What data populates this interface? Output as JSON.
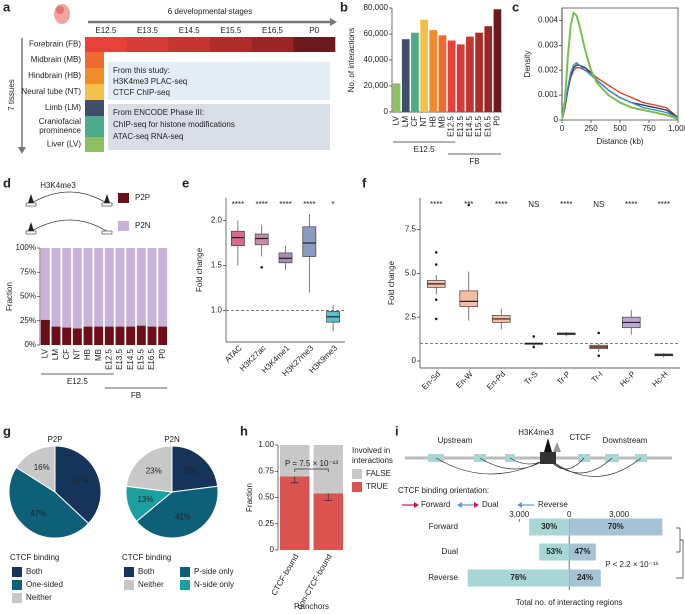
{
  "panel_labels": [
    "a",
    "b",
    "c",
    "d",
    "e",
    "f",
    "g",
    "h",
    "i"
  ],
  "panel_a": {
    "stages_title": "6 developmental stages",
    "stages": [
      "E12.5",
      "E13.5",
      "E14.5",
      "E15.5",
      "E16.5",
      "P0"
    ],
    "fb_stage_colors": [
      "#e8413a",
      "#d73b37",
      "#c23530",
      "#ad2d2b",
      "#982626",
      "#6d1a1f"
    ],
    "tissues_title": "7 tissues",
    "tissues": [
      {
        "lines": [
          "Forebrain (FB)"
        ],
        "color": "#e8413a"
      },
      {
        "lines": [
          "Midbrain (MB)"
        ],
        "color": "#ed6b2e"
      },
      {
        "lines": [
          "Hindbrain (HB)"
        ],
        "color": "#f08c2c"
      },
      {
        "lines": [
          "Neural tube (NT)"
        ],
        "color": "#f5c04a"
      },
      {
        "lines": [
          "Limb (LM)"
        ],
        "color": "#3f4f6b"
      },
      {
        "lines": [
          "Craniofacial",
          "prominence"
        ],
        "color": "#4cab8a"
      },
      {
        "lines": [
          "Liver (LV)"
        ],
        "color": "#8cc063"
      }
    ],
    "study_box": [
      "From this study:",
      "H3K4me3 PLAC-seq",
      "CTCF ChIP-seq"
    ],
    "encode_box": [
      "From ENCODE Phase III:",
      "ChIP-seq for histone modifications",
      "ATAC-seq RNA-seq"
    ]
  },
  "panel_i": {
    "upstream": "Upstream",
    "downstream": "Downstream",
    "mark_label": "H3K4me3",
    "ctcf_label": "CTCF",
    "legend_title": "CTCF binding orientation:",
    "orientations": [
      "Forward",
      "Dual",
      "Reverse"
    ]
  },
  "chart_data": [
    {
      "type": "bar",
      "y_label": "No. of interactions",
      "categories": [
        "LV",
        "LM",
        "CF",
        "NT",
        "HB",
        "MB",
        "E12.5",
        "E13.5",
        "E14.5",
        "E15.5",
        "E16.5",
        "P0"
      ],
      "values": [
        22000,
        56000,
        61000,
        71000,
        63000,
        59000,
        55000,
        52000,
        58000,
        61000,
        66000,
        79000
      ],
      "colors": [
        "#8cc063",
        "#3f4f6b",
        "#4cab8a",
        "#f5c04a",
        "#f08c2c",
        "#ed6b2e",
        "#e8413a",
        "#d73b37",
        "#c23530",
        "#ad2d2b",
        "#982626",
        "#6d1a1f"
      ],
      "ylim": [
        0,
        80000
      ],
      "yticks": [
        0,
        {
          "value": 20000,
          "label": "20,000"
        },
        {
          "value": 40000,
          "label": "40,000"
        },
        {
          "value": 60000,
          "label": "60,000"
        },
        {
          "value": 80000,
          "label": "80,000"
        }
      ],
      "group_labels": [
        "E12.5",
        "FB"
      ]
    },
    {
      "type": "line",
      "x_label": "Distance (kb)",
      "y_label": "Density",
      "x": [
        0,
        25,
        50,
        75,
        100,
        125,
        150,
        200,
        250,
        300,
        400,
        500,
        600,
        700,
        800,
        900,
        1000
      ],
      "series": [
        {
          "color": "#d94030",
          "values": [
            0,
            0.0005,
            0.0012,
            0.0017,
            0.002,
            0.0021,
            0.0021,
            0.002,
            0.0019,
            0.0017,
            0.0014,
            0.0011,
            0.0009,
            0.0007,
            0.0006,
            0.0005,
            0.0001
          ]
        },
        {
          "color": "#2c3e5c",
          "values": [
            0,
            0.0005,
            0.0012,
            0.0018,
            0.0021,
            0.0022,
            0.0022,
            0.0021,
            0.0019,
            0.0016,
            0.0012,
            0.0009,
            0.0007,
            0.0006,
            0.0005,
            0.0004,
            0.0001
          ]
        },
        {
          "color": "#3a8fc1",
          "values": [
            0,
            0.0006,
            0.0013,
            0.0019,
            0.0022,
            0.0023,
            0.0022,
            0.002,
            0.0018,
            0.0016,
            0.0012,
            0.0009,
            0.0007,
            0.0005,
            0.0004,
            0.0003,
            0.0001
          ]
        },
        {
          "color": "#7cbf4f",
          "values": [
            0,
            0.0008,
            0.0025,
            0.0038,
            0.0043,
            0.0042,
            0.0038,
            0.0028,
            0.002,
            0.0015,
            0.001,
            0.0007,
            0.0005,
            0.0004,
            0.0003,
            0.0002,
            5e-05
          ]
        }
      ],
      "xlim": [
        0,
        1000
      ],
      "xticks": [
        0,
        250,
        500,
        750,
        {
          "value": 1000,
          "label": "1,000"
        }
      ],
      "ylim": [
        0,
        0.0045
      ],
      "yticks": [
        0,
        0.001,
        0.002,
        0.003,
        0.004
      ]
    },
    {
      "type": "stacked_bar",
      "y_label": "Fraction",
      "top_label": "H3K4me3",
      "categories": [
        "LV",
        "LM",
        "CF",
        "NT",
        "HB",
        "MB",
        "E12.5",
        "E13.5",
        "E14.5",
        "E15.5",
        "E16.5",
        "P0"
      ],
      "series": [
        {
          "name": "P2P",
          "color": "#6b0f1a",
          "values": [
            26,
            19,
            18,
            17,
            19,
            19,
            19,
            19,
            19,
            20,
            19,
            19
          ]
        },
        {
          "name": "P2N",
          "color": "#c9b3d9",
          "values": [
            74,
            81,
            82,
            83,
            81,
            81,
            81,
            81,
            81,
            80,
            81,
            81
          ]
        }
      ],
      "ylim": [
        0,
        100
      ],
      "yticks": [
        {
          "value": 0,
          "label": "0%"
        },
        {
          "value": 25,
          "label": "25%"
        },
        {
          "value": 50,
          "label": "50%"
        },
        {
          "value": 75,
          "label": "75%"
        },
        {
          "value": 100,
          "label": "100%"
        }
      ],
      "group_labels": [
        "E12.5",
        "FB"
      ]
    },
    {
      "type": "box",
      "y_label": "Fold change",
      "categories": [
        "ATAC",
        "H3K27ac",
        "H3K4me1",
        "H3K27me3",
        "H3K9me3"
      ],
      "colors": [
        "#d96a8c",
        "#c28da6",
        "#a58cb5",
        "#8a9ac0",
        "#5bbfca"
      ],
      "annotations": [
        "****",
        "****",
        "****",
        "****",
        "*"
      ],
      "boxes": [
        {
          "whisker_low": 1.5,
          "q1": 1.72,
          "median": 1.81,
          "q3": 1.88,
          "whisker_high": 2.0,
          "outliers": []
        },
        {
          "whisker_low": 1.6,
          "q1": 1.73,
          "median": 1.8,
          "q3": 1.85,
          "whisker_high": 1.95,
          "outliers": [
            1.48
          ]
        },
        {
          "whisker_low": 1.45,
          "q1": 1.53,
          "median": 1.58,
          "q3": 1.64,
          "whisker_high": 1.72,
          "outliers": []
        },
        {
          "whisker_low": 1.2,
          "q1": 1.6,
          "median": 1.75,
          "q3": 1.93,
          "whisker_high": 2.07,
          "outliers": []
        },
        {
          "whisker_low": 0.77,
          "q1": 0.87,
          "median": 0.93,
          "q3": 0.99,
          "whisker_high": 1.06,
          "outliers": []
        }
      ],
      "ref_line": 1,
      "ylim": [
        0.65,
        2.25
      ],
      "yticks": [
        {
          "value": 1,
          "label": "1.0"
        },
        1.5,
        {
          "value": 2,
          "label": "2.0"
        }
      ]
    },
    {
      "type": "box",
      "y_label": "Fold change",
      "categories": [
        "En-Sd",
        "En-W",
        "En-Pd",
        "Tr-S",
        "Tr-P",
        "Tr-I",
        "Hc-P",
        "Hc-H"
      ],
      "colors": [
        "#f5bca4",
        "#f5bca4",
        "#f5bca4",
        "#e39a86",
        "#e39a86",
        "#e39a86",
        "#bba7d1",
        "#bba7d1"
      ],
      "annotations": [
        "****",
        "***",
        "****",
        "NS",
        "****",
        "NS",
        "****",
        "****"
      ],
      "boxes": [
        {
          "whisker_low": 3.8,
          "q1": 4.2,
          "median": 4.4,
          "q3": 4.6,
          "whisker_high": 4.9,
          "outliers": [
            5.5,
            6.2,
            3.5,
            2.4
          ]
        },
        {
          "whisker_low": 2.3,
          "q1": 3.1,
          "median": 3.4,
          "q3": 4.0,
          "whisker_high": 5.1,
          "outliers": [
            8.9
          ]
        },
        {
          "whisker_low": 1.8,
          "q1": 2.2,
          "median": 2.4,
          "q3": 2.6,
          "whisker_high": 3.0,
          "outliers": []
        },
        {
          "whisker_low": 0.9,
          "q1": 0.95,
          "median": 1.0,
          "q3": 1.02,
          "whisker_high": 1.05,
          "outliers": [
            1.4,
            0.8
          ]
        },
        {
          "whisker_low": 1.4,
          "q1": 1.5,
          "median": 1.55,
          "q3": 1.6,
          "whisker_high": 1.65,
          "outliers": []
        },
        {
          "whisker_low": 0.5,
          "q1": 0.7,
          "median": 0.8,
          "q3": 0.9,
          "whisker_high": 1.0,
          "outliers": [
            1.6,
            0.3
          ]
        },
        {
          "whisker_low": 1.5,
          "q1": 1.9,
          "median": 2.2,
          "q3": 2.5,
          "whisker_high": 2.9,
          "outliers": []
        },
        {
          "whisker_low": 0.2,
          "q1": 0.3,
          "median": 0.35,
          "q3": 0.4,
          "whisker_high": 0.45,
          "outliers": []
        }
      ],
      "ref_line": 1,
      "ylim": [
        -0.4,
        9.3
      ],
      "yticks": [
        0,
        2.5,
        {
          "value": 5,
          "label": "5.0"
        },
        7.5
      ]
    },
    {
      "type": "pie",
      "title": "P2P",
      "legend_title": "CTCF binding",
      "categories": [
        "Both",
        "One-sided",
        "Neither"
      ],
      "values": [
        37,
        47,
        16
      ],
      "value_labels": [
        "37%",
        "47%",
        "16%"
      ],
      "colors": [
        "#16335a",
        "#0e5f78",
        "#c8c8c8"
      ]
    },
    {
      "type": "pie",
      "title": "P2N",
      "legend_title": "CTCF binding",
      "categories": [
        "Both",
        "P-side only",
        "N-side only",
        "Neither"
      ],
      "values": [
        23,
        41,
        13,
        23
      ],
      "value_labels": [
        "23%",
        "41%",
        "13%",
        "23%"
      ],
      "colors": [
        "#16335a",
        "#0e5f78",
        "#1aa0a0",
        "#c8c8c8"
      ]
    },
    {
      "type": "stacked_bar_error",
      "y_label": "Fraction",
      "x_label": "P.anchors",
      "legend_title": [
        "Involved in",
        "interactions"
      ],
      "annotation": "P = 7.5 × 10⁻¹³",
      "categories": [
        "CTCF-bound",
        "non-CTCF-bound"
      ],
      "series": [
        {
          "name": "TRUE",
          "color": "#d9534f",
          "values": [
            0.7,
            0.54
          ],
          "error": [
            0.06,
            0.07
          ]
        },
        {
          "name": "FALSE",
          "color": "#c8c8c8",
          "values": [
            0.3,
            0.46
          ]
        }
      ],
      "ylim": [
        0,
        1
      ],
      "yticks": [
        0,
        0.25,
        {
          "value": 0.5,
          "label": "0.50"
        },
        0.75,
        {
          "value": 1,
          "label": "1.00"
        }
      ]
    },
    {
      "type": "diverging_bar",
      "x_label": "Total no. of interacting regions",
      "annotation": "P < 2.2 × 10⁻¹⁶",
      "categories": [
        "Forward",
        "Dual",
        "Reverse"
      ],
      "series": [
        {
          "color": "#a8d6d4",
          "values": [
            -2400,
            -1800,
            -6100
          ],
          "share_labels": [
            "30%",
            "53%",
            "76%"
          ]
        },
        {
          "color": "#a6c3d6",
          "values": [
            5600,
            1600,
            1900
          ],
          "share_labels": [
            "70%",
            "47%",
            "24%"
          ]
        }
      ],
      "xlim": [
        -6200,
        6600
      ],
      "xticks": [
        {
          "value": -3000,
          "label": "3,000"
        },
        0,
        {
          "value": 3000,
          "label": "3,000"
        }
      ]
    }
  ]
}
